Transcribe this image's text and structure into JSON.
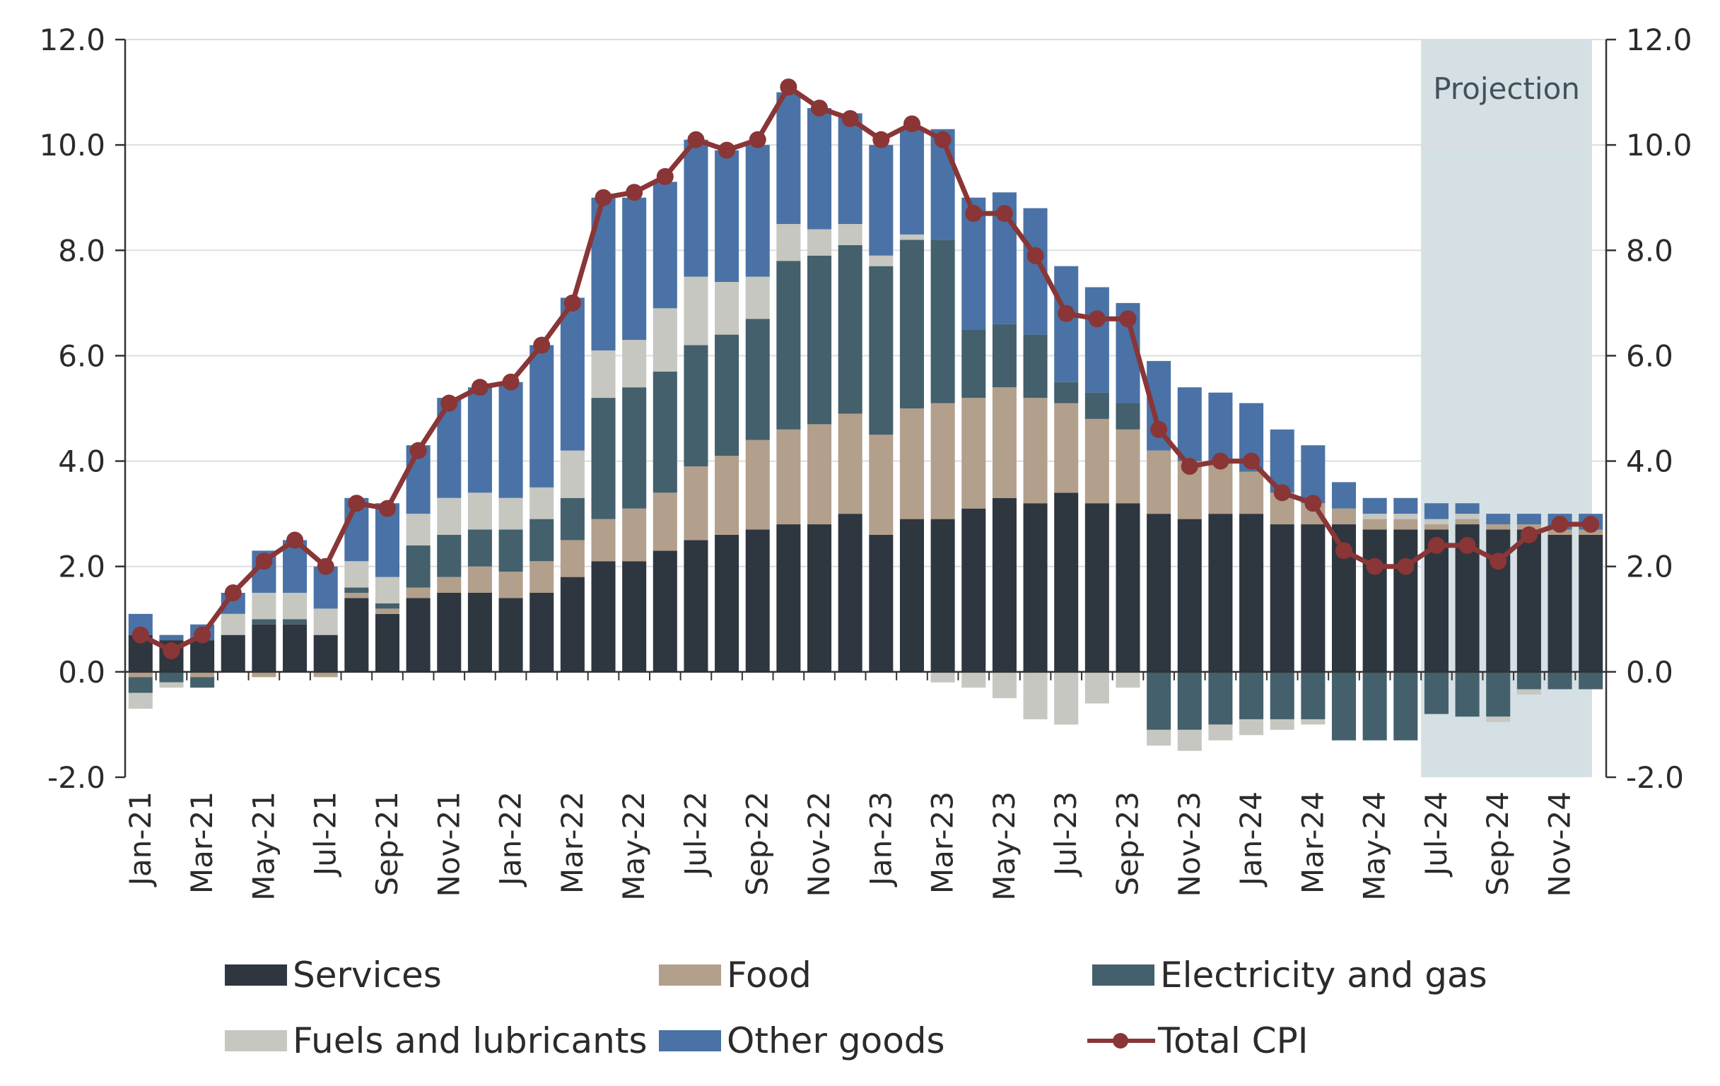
{
  "chart_data": {
    "type": "bar",
    "stacked": true,
    "title": "",
    "xlabel": "",
    "ylabel": "",
    "ylim": [
      -2,
      12
    ],
    "yticks": [
      "12.0",
      "10.0",
      "8.0",
      "6.0",
      "4.0",
      "2.0",
      "0.0",
      "-2.0"
    ],
    "ytick_values": [
      12,
      10,
      8,
      6,
      4,
      2,
      0,
      -2
    ],
    "grid": true,
    "legend_position": "bottom",
    "projection_label": "Projection",
    "projection_start": "Jul-24",
    "categories": [
      "Jan-21",
      "Feb-21",
      "Mar-21",
      "Apr-21",
      "May-21",
      "Jun-21",
      "Jul-21",
      "Aug-21",
      "Sep-21",
      "Oct-21",
      "Nov-21",
      "Dec-21",
      "Jan-22",
      "Feb-22",
      "Mar-22",
      "Apr-22",
      "May-22",
      "Jun-22",
      "Jul-22",
      "Aug-22",
      "Sep-22",
      "Oct-22",
      "Nov-22",
      "Dec-22",
      "Jan-23",
      "Feb-23",
      "Mar-23",
      "Apr-23",
      "May-23",
      "Jun-23",
      "Jul-23",
      "Aug-23",
      "Sep-23",
      "Oct-23",
      "Nov-23",
      "Dec-23",
      "Jan-24",
      "Feb-24",
      "Mar-24",
      "Apr-24",
      "May-24",
      "Jun-24",
      "Jul-24",
      "Aug-24",
      "Sep-24",
      "Oct-24",
      "Nov-24",
      "Dec-24"
    ],
    "xtick_labels": [
      "Jan-21",
      "Mar-21",
      "May-21",
      "Jul-21",
      "Sep-21",
      "Nov-21",
      "Jan-22",
      "Mar-22",
      "May-22",
      "Jul-22",
      "Sep-22",
      "Nov-22",
      "Jan-23",
      "Mar-23",
      "May-23",
      "Jul-23",
      "Sep-23",
      "Nov-23",
      "Jan-24",
      "Mar-24",
      "May-24",
      "Jul-24",
      "Sep-24",
      "Nov-24"
    ],
    "series": [
      {
        "name": "Services",
        "color": "#2e363f",
        "values": [
          0.7,
          0.6,
          0.6,
          0.7,
          0.9,
          0.9,
          0.7,
          1.4,
          1.1,
          1.4,
          1.5,
          1.5,
          1.4,
          1.5,
          1.8,
          2.1,
          2.1,
          2.3,
          2.5,
          2.6,
          2.7,
          2.8,
          2.8,
          3.0,
          2.6,
          2.9,
          2.9,
          3.1,
          3.3,
          3.2,
          3.4,
          3.2,
          3.2,
          3.0,
          2.9,
          3.0,
          3.0,
          2.8,
          2.8,
          2.8,
          2.7,
          2.7,
          2.7,
          2.8,
          2.7,
          2.7,
          2.6,
          2.6
        ]
      },
      {
        "name": "Food",
        "color": "#b29f8c",
        "values": [
          -0.1,
          0.0,
          -0.1,
          0.0,
          -0.1,
          0.0,
          -0.1,
          0.1,
          0.1,
          0.2,
          0.3,
          0.5,
          0.5,
          0.6,
          0.7,
          0.8,
          1.0,
          1.1,
          1.4,
          1.5,
          1.7,
          1.8,
          1.9,
          1.9,
          1.9,
          2.1,
          2.2,
          2.1,
          2.1,
          2.0,
          1.7,
          1.6,
          1.4,
          1.2,
          1.1,
          1.0,
          0.8,
          0.6,
          0.4,
          0.3,
          0.2,
          0.2,
          0.1,
          0.1,
          0.1,
          0.1,
          0.1,
          0.1
        ]
      },
      {
        "name": "Electricity and gas",
        "color": "#43606c",
        "values": [
          -0.3,
          -0.2,
          -0.2,
          0.0,
          0.1,
          0.1,
          0.0,
          0.1,
          0.1,
          0.8,
          0.8,
          0.7,
          0.8,
          0.8,
          0.8,
          2.3,
          2.3,
          2.3,
          2.3,
          2.3,
          2.3,
          3.2,
          3.2,
          3.2,
          3.2,
          3.2,
          3.1,
          1.3,
          1.2,
          1.2,
          0.4,
          0.5,
          0.5,
          -1.1,
          -1.1,
          -1.0,
          -0.9,
          -0.9,
          -0.9,
          -1.3,
          -1.3,
          -1.3,
          -0.8,
          -0.85,
          -0.85,
          -0.33,
          -0.33,
          -0.33
        ]
      },
      {
        "name": "Fuels and lubricants",
        "color": "#c6c7c0",
        "values": [
          -0.3,
          -0.1,
          -0.0,
          0.4,
          0.5,
          0.5,
          0.5,
          0.5,
          0.5,
          0.6,
          0.7,
          0.7,
          0.6,
          0.6,
          0.9,
          0.9,
          0.9,
          1.2,
          1.3,
          1.0,
          0.8,
          0.7,
          0.5,
          0.4,
          0.2,
          0.1,
          -0.2,
          -0.3,
          -0.5,
          -0.9,
          -1.0,
          -0.6,
          -0.3,
          -0.3,
          -0.4,
          -0.3,
          -0.3,
          -0.2,
          -0.1,
          0.0,
          0.1,
          0.1,
          0.1,
          0.1,
          -0.1,
          -0.1,
          0.0,
          0.0
        ]
      },
      {
        "name": "Other goods",
        "color": "#4a72a6",
        "values": [
          0.4,
          0.1,
          0.3,
          0.4,
          0.8,
          1.0,
          0.8,
          1.2,
          1.4,
          1.3,
          1.9,
          2.0,
          2.2,
          2.7,
          2.9,
          2.9,
          2.7,
          2.4,
          2.6,
          2.5,
          2.5,
          2.5,
          2.3,
          2.1,
          2.1,
          2.0,
          2.1,
          2.5,
          2.5,
          2.4,
          2.2,
          2.0,
          1.9,
          1.7,
          1.4,
          1.3,
          1.3,
          1.2,
          1.1,
          0.5,
          0.3,
          0.3,
          0.3,
          0.2,
          0.2,
          0.2,
          0.3,
          0.3
        ]
      }
    ],
    "line_series": {
      "name": "Total CPI",
      "color": "#8a3536",
      "values": [
        0.7,
        0.4,
        0.7,
        1.5,
        2.1,
        2.5,
        2.0,
        3.2,
        3.1,
        4.2,
        5.1,
        5.4,
        5.5,
        6.2,
        7.0,
        9.0,
        9.1,
        9.4,
        10.1,
        9.9,
        10.1,
        11.1,
        10.7,
        10.5,
        10.1,
        10.4,
        10.1,
        8.7,
        8.7,
        7.9,
        6.8,
        6.7,
        6.7,
        4.6,
        3.9,
        4.0,
        4.0,
        3.4,
        3.2,
        2.3,
        2.0,
        2.0,
        2.4,
        2.4,
        2.1,
        2.6,
        2.8,
        2.8
      ]
    }
  },
  "legend": {
    "items": [
      {
        "label": "Services",
        "color": "#2e363f",
        "kind": "bar"
      },
      {
        "label": "Food",
        "color": "#b29f8c",
        "kind": "bar"
      },
      {
        "label": "Electricity and gas",
        "color": "#43606c",
        "kind": "bar"
      },
      {
        "label": "Fuels and lubricants",
        "color": "#c6c7c0",
        "kind": "bar"
      },
      {
        "label": "Other goods",
        "color": "#4a72a6",
        "kind": "bar"
      },
      {
        "label": "Total CPI",
        "color": "#8a3536",
        "kind": "line"
      }
    ]
  }
}
